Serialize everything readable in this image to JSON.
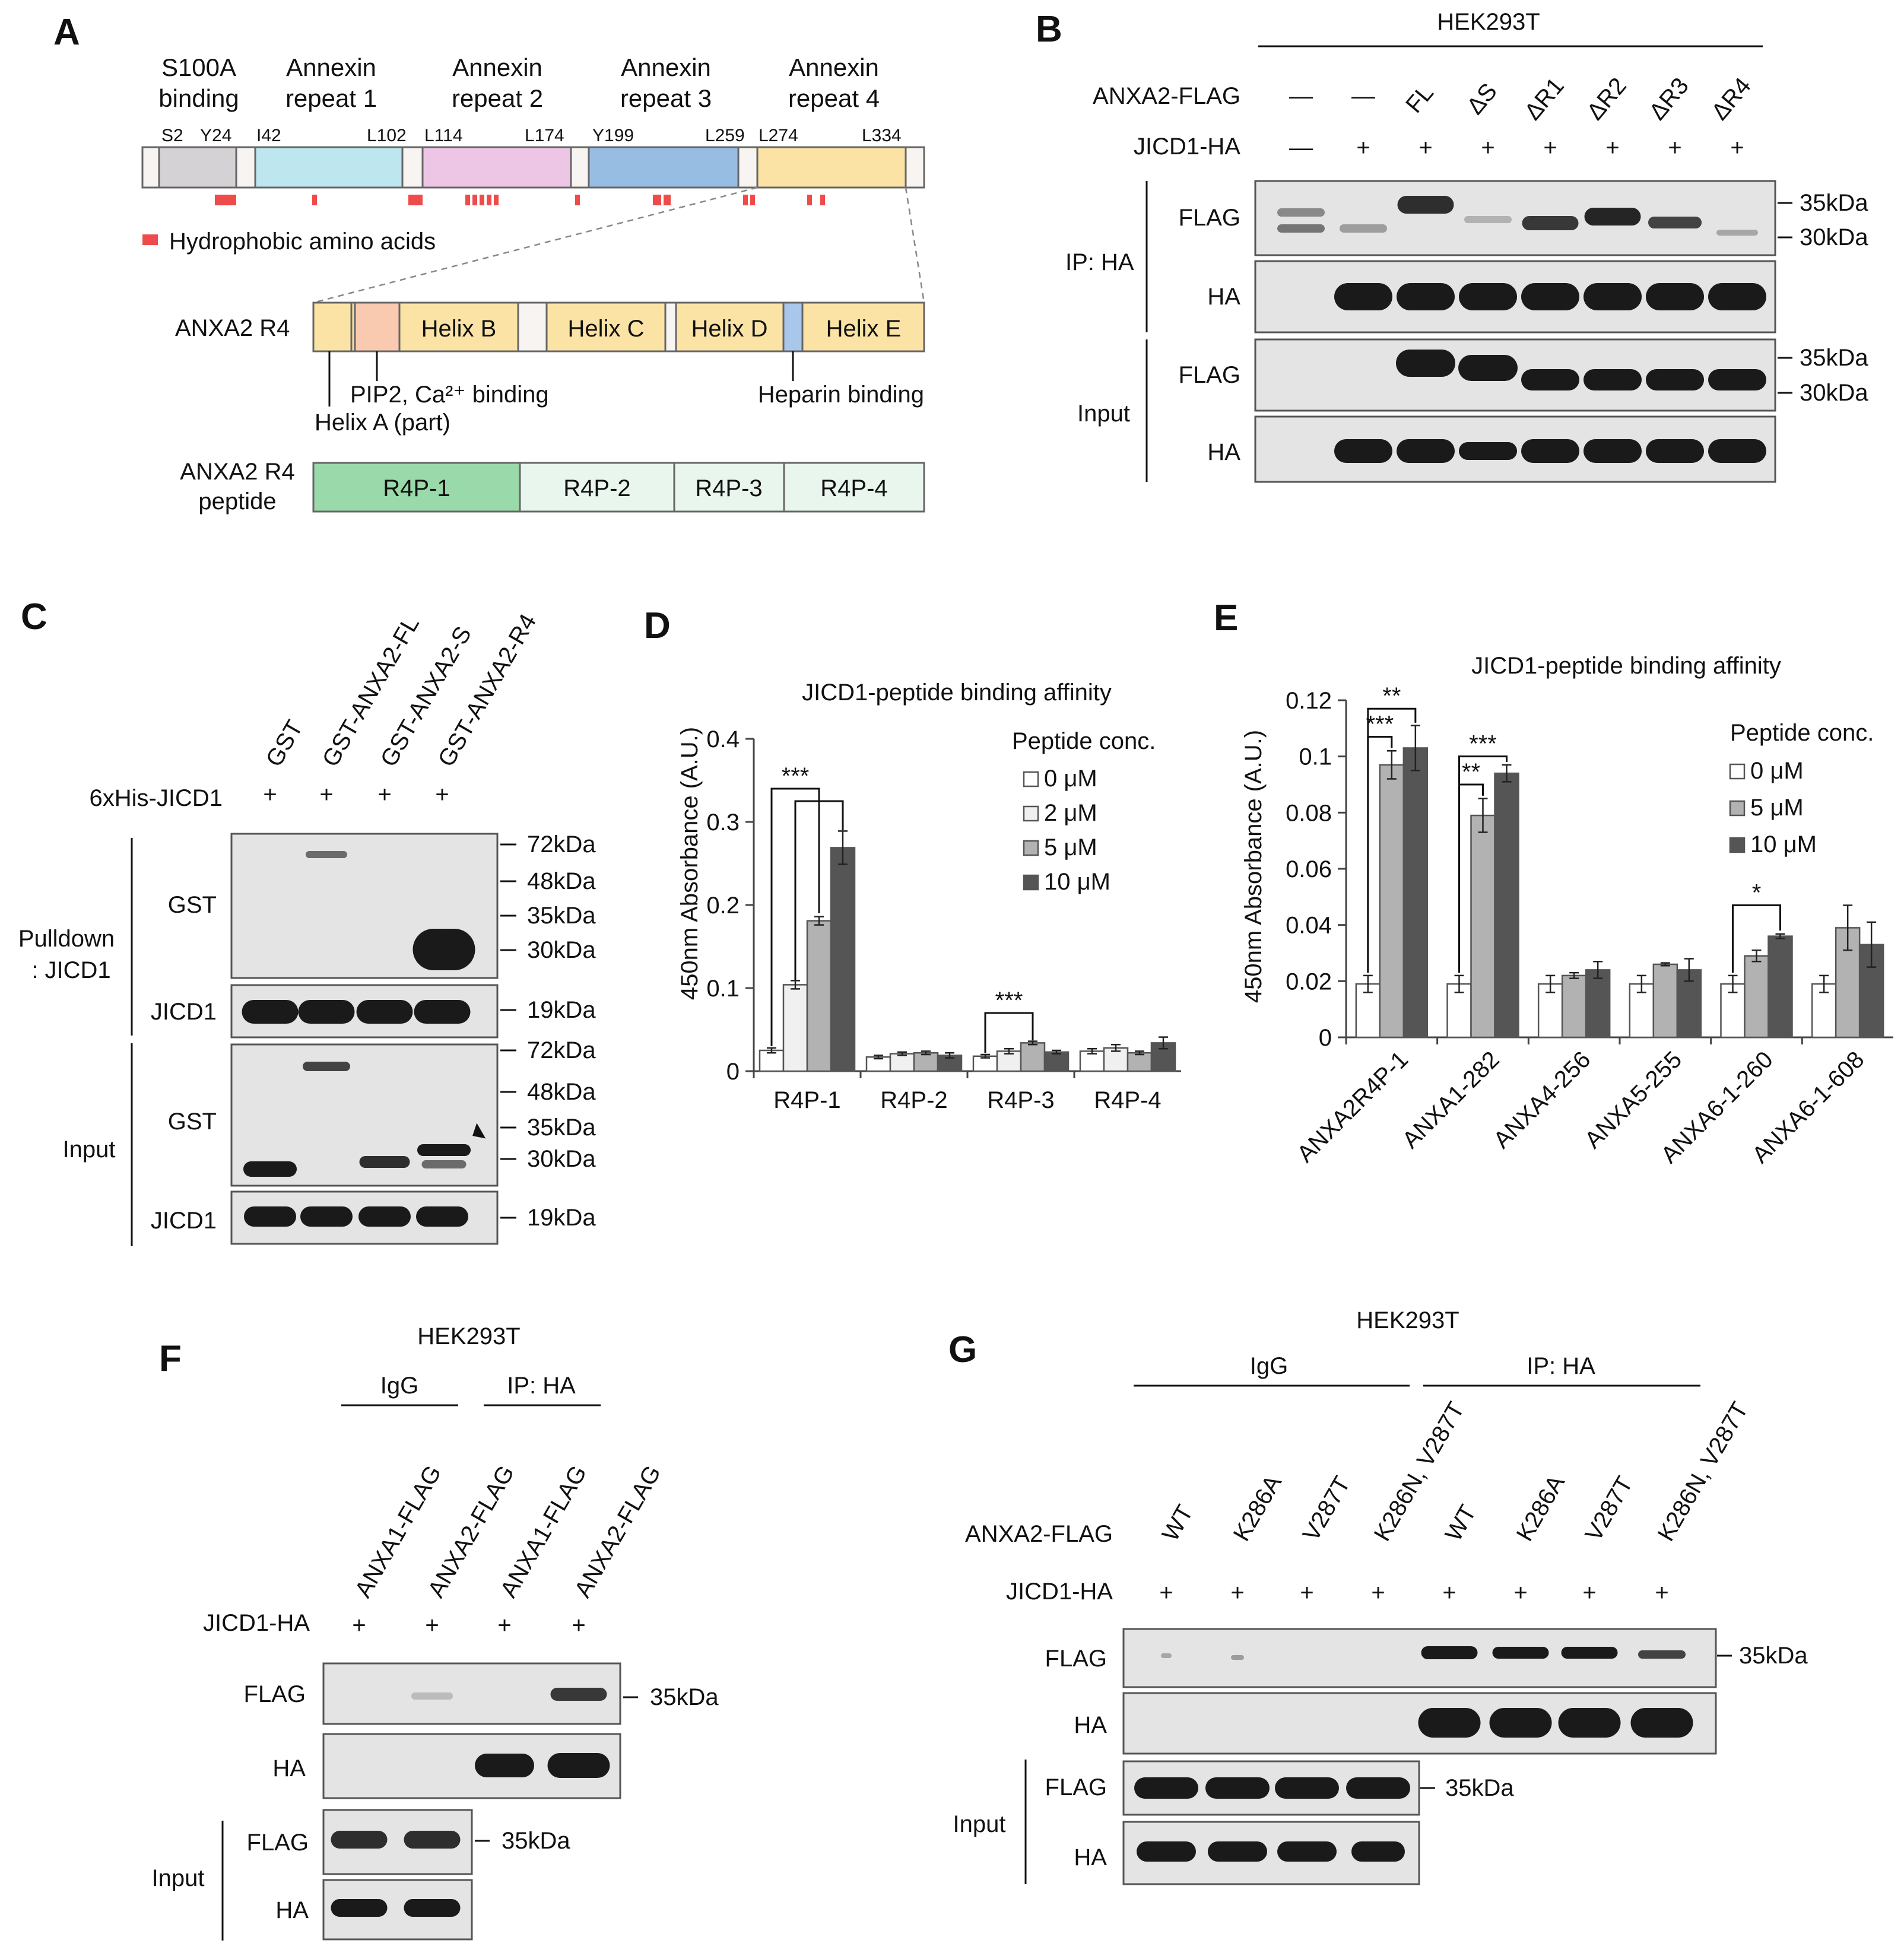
{
  "panelA": {
    "label": "A",
    "domain_labels": [
      [
        "S100A",
        "binding"
      ],
      [
        "Annexin",
        "repeat 1"
      ],
      [
        "Annexin",
        "repeat 2"
      ],
      [
        "Annexin",
        "repeat 3"
      ],
      [
        "Annexin",
        "repeat 4"
      ]
    ],
    "residues": [
      "S2",
      "Y24",
      "I42",
      "L102",
      "L114",
      "L174",
      "Y199",
      "L259",
      "L274",
      "L334"
    ],
    "legend": "Hydrophobic amino acids",
    "r4_label": "ANXA2 R4",
    "helices": [
      "Helix B",
      "Helix C",
      "Helix D",
      "Helix E"
    ],
    "pip2_label": "PIP2, Ca²⁺ binding",
    "helixA_label": "Helix A (part)",
    "heparin_label": "Heparin binding",
    "peptide_label": [
      "ANXA2 R4",
      "peptide"
    ],
    "peptides": [
      "R4P-1",
      "R4P-2",
      "R4P-3",
      "R4P-4"
    ],
    "colors": {
      "s100": "#d4d2d4",
      "rep1": "#bde6ef",
      "rep2": "#edc6e6",
      "rep3": "#98bde3",
      "rep4": "#fbe3a6",
      "pip2": "#f9c9b0",
      "heparin": "#a9c7ea",
      "r4p1": "#99d9aa",
      "r4p_other": "#e8f6ed",
      "hydrophobic": "#ef4b4b"
    }
  },
  "panelB": {
    "label": "B",
    "cell": "HEK293T",
    "row1": "ANXA2-FLAG",
    "row2": "JICD1-HA",
    "lanes": [
      "—",
      "—",
      "FL",
      "ΔS",
      "ΔR1",
      "ΔR2",
      "ΔR3",
      "ΔR4"
    ],
    "jicd": [
      "—",
      "+",
      "+",
      "+",
      "+",
      "+",
      "+",
      "+"
    ],
    "group1": "IP: HA",
    "group2": "Input",
    "blots": [
      "FLAG",
      "HA",
      "FLAG",
      "HA"
    ],
    "markers": [
      "35kDa",
      "30kDa",
      "35kDa",
      "30kDa"
    ]
  },
  "panelC": {
    "label": "C",
    "lanes": [
      "GST",
      "GST-ANXA2-FL",
      "GST-ANXA2-S",
      "GST-ANXA2-R4"
    ],
    "his_label": "6xHis-JICD1",
    "plus": [
      "+",
      "+",
      "+",
      "+"
    ],
    "group1": [
      "Pulldown",
      ": JICD1"
    ],
    "group2": "Input",
    "blots": [
      "GST",
      "JICD1",
      "GST",
      "JICD1"
    ],
    "markers_top": [
      "72kDa",
      "48kDa",
      "35kDa",
      "30kDa"
    ],
    "marker_19": "19kDa",
    "markers_bottom": [
      "72kDa",
      "48kDa",
      "35kDa",
      "30kDa"
    ]
  },
  "panelD": {
    "label": "D",
    "chart_data": {
      "type": "bar",
      "title": "JICD1-peptide binding affinity",
      "ylabel": "450nm Absorbance (A.U.)",
      "ylim": [
        0,
        0.4
      ],
      "yticks": [
        "0",
        "0.1",
        "0.2",
        "0.3",
        "0.4"
      ],
      "categories": [
        "R4P-1",
        "R4P-2",
        "R4P-3",
        "R4P-4"
      ],
      "legend_title": "Peptide conc.",
      "series": [
        {
          "name": "0 μM",
          "color": "#ffffff",
          "values": [
            0.025,
            0.017,
            0.018,
            0.024
          ],
          "err": [
            0.003,
            0.002,
            0.002,
            0.003
          ]
        },
        {
          "name": "2 μM",
          "color": "#f0f0f0",
          "values": [
            0.104,
            0.021,
            0.024,
            0.028
          ],
          "err": [
            0.005,
            0.002,
            0.003,
            0.004
          ]
        },
        {
          "name": "5 μM",
          "color": "#b2b2b2",
          "values": [
            0.181,
            0.022,
            0.034,
            0.022
          ],
          "err": [
            0.005,
            0.002,
            0.002,
            0.002
          ]
        },
        {
          "name": "10 μM",
          "color": "#555555",
          "values": [
            0.269,
            0.019,
            0.023,
            0.034
          ],
          "err": [
            0.02,
            0.003,
            0.002,
            0.007
          ]
        }
      ],
      "significance": [
        "***",
        "***"
      ]
    }
  },
  "panelE": {
    "label": "E",
    "chart_data": {
      "type": "bar",
      "title": "JICD1-peptide binding affinity",
      "ylabel": "450nm Absorbance (A.U.)",
      "ylim": [
        0,
        0.12
      ],
      "yticks": [
        "0",
        "0.02",
        "0.04",
        "0.06",
        "0.08",
        "0.1",
        "0.12"
      ],
      "categories": [
        "ANXA2R4P-1",
        "ANXA1-282",
        "ANXA4-256",
        "ANXA5-255",
        "ANXA6-1-260",
        "ANXA6-1-608"
      ],
      "legend_title": "Peptide conc.",
      "series": [
        {
          "name": "0 μM",
          "color": "#ffffff",
          "values": [
            0.019,
            0.019,
            0.019,
            0.019,
            0.019,
            0.019
          ],
          "err": [
            0.003,
            0.003,
            0.003,
            0.003,
            0.003,
            0.003
          ]
        },
        {
          "name": "5 μM",
          "color": "#b2b2b2",
          "values": [
            0.097,
            0.079,
            0.022,
            0.026,
            0.029,
            0.039
          ],
          "err": [
            0.005,
            0.006,
            0.001,
            0.0005,
            0.002,
            0.008
          ]
        },
        {
          "name": "10 μM",
          "color": "#555555",
          "values": [
            0.103,
            0.094,
            0.024,
            0.024,
            0.036,
            0.033
          ],
          "err": [
            0.008,
            0.003,
            0.003,
            0.004,
            0.0008,
            0.008
          ]
        }
      ],
      "significance": [
        "**",
        "***",
        "***",
        "**",
        "*"
      ]
    }
  },
  "panelF": {
    "label": "F",
    "cell": "HEK293T",
    "group1": "IgG",
    "group2": "IP: HA",
    "lanes": [
      "ANXA1-FLAG",
      "ANXA2-FLAG",
      "ANXA1-FLAG",
      "ANXA2-FLAG"
    ],
    "jicd_label": "JICD1-HA",
    "plus": [
      "+",
      "+",
      "+",
      "+"
    ],
    "blots": [
      "FLAG",
      "HA",
      "FLAG",
      "HA"
    ],
    "input_label": "Input",
    "markers": [
      "35kDa",
      "35kDa"
    ]
  },
  "panelG": {
    "label": "G",
    "cell": "HEK293T",
    "group1": "IgG",
    "group2": "IP: HA",
    "lanes": [
      "WT",
      "K286A",
      "V287T",
      "K286N, V287T",
      "WT",
      "K286A",
      "V287T",
      "K286N, V287T"
    ],
    "anxa_label": "ANXA2-FLAG",
    "jicd_label": "JICD1-HA",
    "plus": [
      "+",
      "+",
      "+",
      "+",
      "+",
      "+",
      "+",
      "+"
    ],
    "blots": [
      "FLAG",
      "HA",
      "FLAG",
      "HA"
    ],
    "input_label": "Input",
    "markers": [
      "35kDa",
      "35kDa"
    ]
  }
}
